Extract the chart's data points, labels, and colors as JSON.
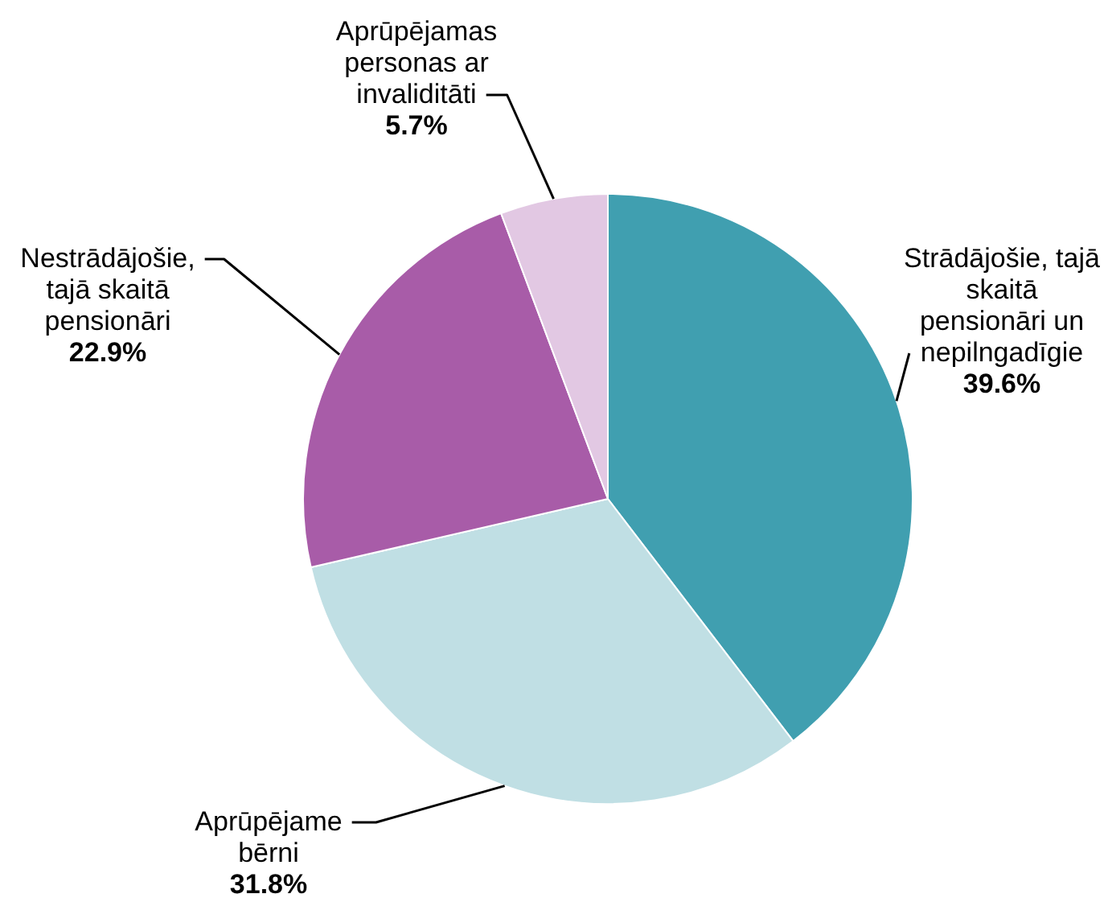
{
  "chart_data": {
    "type": "pie",
    "categories": [
      "Strādājošie, tajā skaitā pensionāri un nepilngadīgie",
      "Aprūpējame bērni",
      "Nestrādājošie, tajā skaitā pensionāri",
      "Aprūpējamas personas ar invaliditāti"
    ],
    "values": [
      39.6,
      31.8,
      22.9,
      5.7
    ],
    "colors": [
      "#409fb0",
      "#c0dfe4",
      "#a85ca8",
      "#e2c8e3"
    ],
    "value_labels": [
      "39.6%",
      "31.8%",
      "22.9%",
      "5.7%"
    ],
    "legend": false
  }
}
